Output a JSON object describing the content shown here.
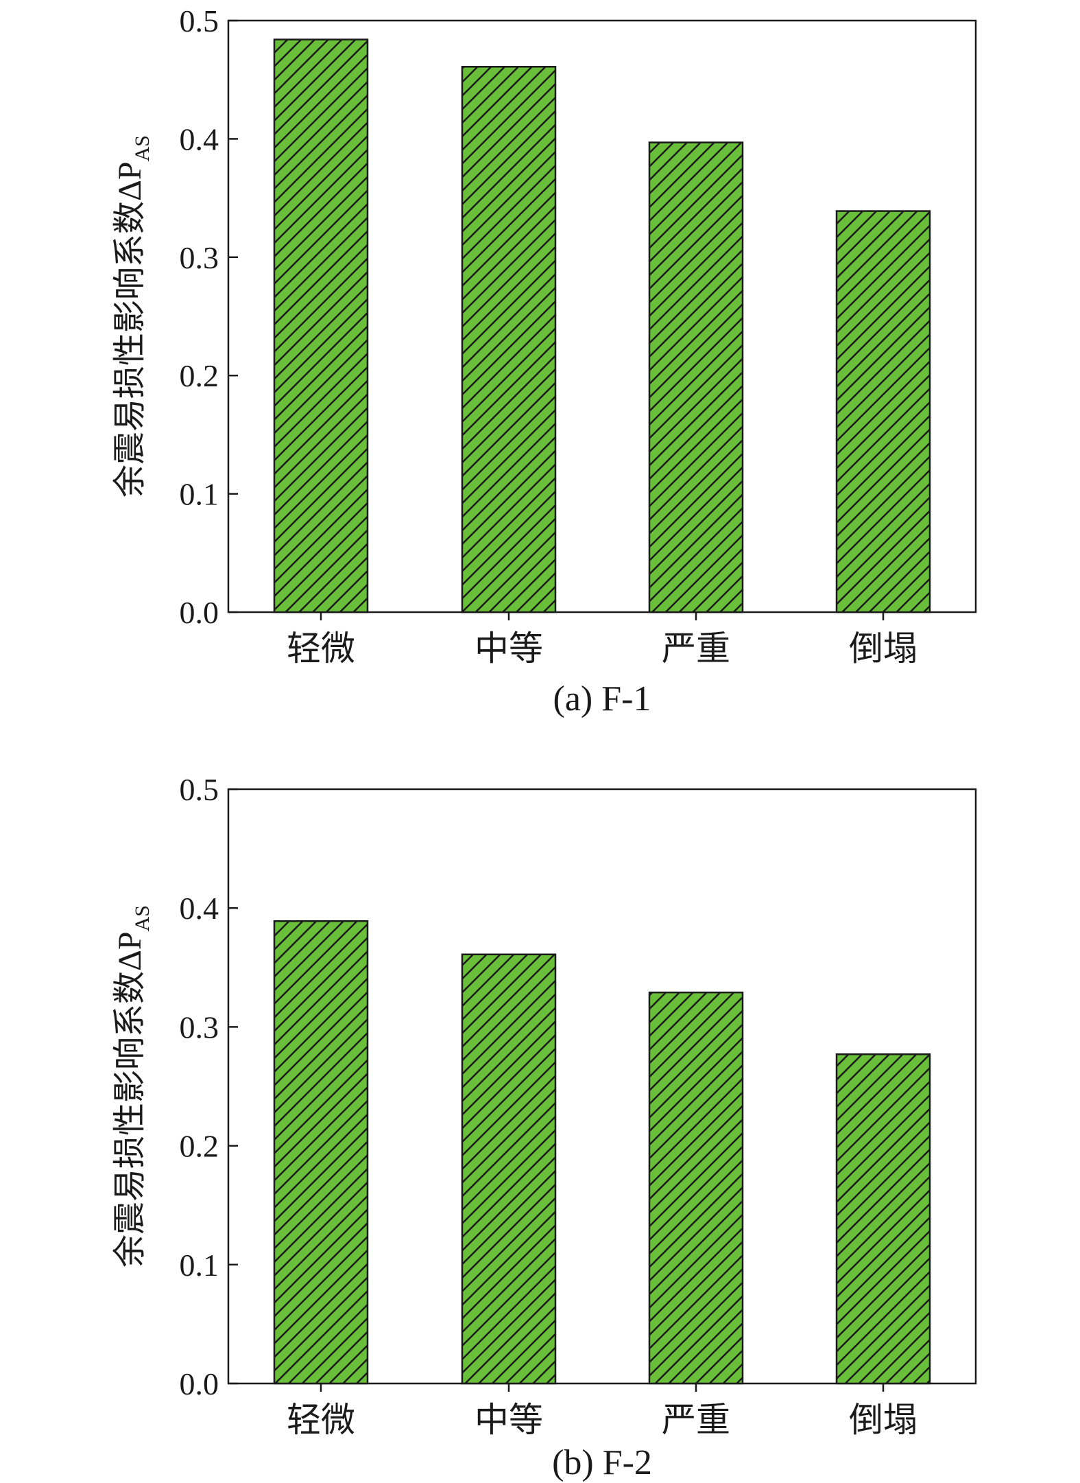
{
  "colors": {
    "bar_fill": "#6abf3a",
    "hatch": "#1a1a1a",
    "axis": "#1a1a1a"
  },
  "chart_data": [
    {
      "type": "bar",
      "caption": "(a) F-1",
      "ylabel": "余震易损性影响系数ΔP",
      "ylabel_subscript": "AS",
      "categories": [
        "轻微",
        "中等",
        "严重",
        "倒塌"
      ],
      "values": [
        0.484,
        0.461,
        0.397,
        0.339
      ],
      "ylim": [
        0,
        0.5
      ],
      "yticks": [
        "0.0",
        "0.1",
        "0.2",
        "0.3",
        "0.4",
        "0.5"
      ],
      "grid": false,
      "legend": "none"
    },
    {
      "type": "bar",
      "caption": "(b) F-2",
      "ylabel": "余震易损性影响系数ΔP",
      "ylabel_subscript": "AS",
      "categories": [
        "轻微",
        "中等",
        "严重",
        "倒塌"
      ],
      "values": [
        0.389,
        0.361,
        0.329,
        0.277
      ],
      "ylim": [
        0,
        0.5
      ],
      "yticks": [
        "0.0",
        "0.1",
        "0.2",
        "0.3",
        "0.4",
        "0.5"
      ],
      "grid": false,
      "legend": "none"
    }
  ]
}
